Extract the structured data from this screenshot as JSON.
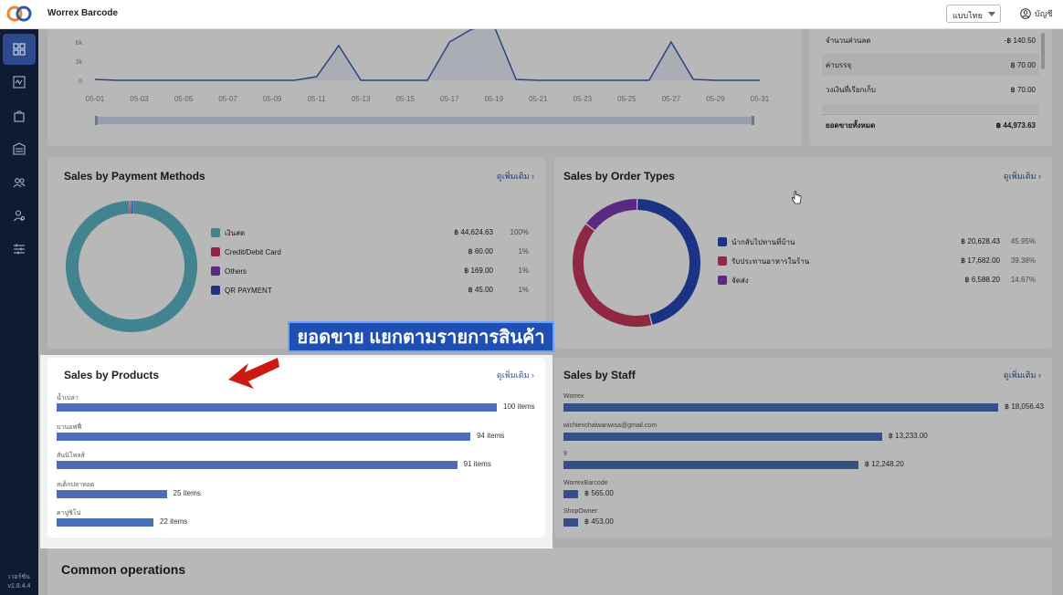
{
  "header": {
    "app_title": "Worrex Barcode",
    "language": "แบบไทย",
    "account_label": "บัญชี"
  },
  "sidebar": {
    "items": [
      "dashboard-icon",
      "activity-icon",
      "bag-icon",
      "inventory-icon",
      "customers-icon",
      "staff-icon",
      "settings-icon"
    ],
    "version_label": "เวอร์ชัน",
    "version": "v1.8.4.4"
  },
  "daily_chart": {
    "y_ticks": [
      "6k",
      "3k",
      "0"
    ],
    "x_ticks": [
      "05-01",
      "05-03",
      "05-05",
      "05-07",
      "05-09",
      "05-11",
      "05-13",
      "05-15",
      "05-17",
      "05-19",
      "05-21",
      "05-23",
      "05-25",
      "05-27",
      "05-29",
      "05-31"
    ]
  },
  "summary": {
    "rows": [
      {
        "label": "จำนวนส่วนลด",
        "value": "-฿ 140.50"
      },
      {
        "label": "ค่าบรรจุ",
        "value": "฿ 70.00"
      },
      {
        "label": "วงเงินที่เรียกเก็บ",
        "value": "฿ 70.00"
      },
      {
        "label": "ยอดขายทั้งหมด",
        "value": "฿ 44,973.63"
      }
    ]
  },
  "payment_methods": {
    "title": "Sales by Payment Methods",
    "see_more": "ดูเพิ่มเติม ›",
    "items": [
      {
        "label": "เงินสด",
        "value": "฿ 44,624.63",
        "pct": "100%",
        "color": "#5bb8c8"
      },
      {
        "label": "Credit/Debit Card",
        "value": "฿ 60.00",
        "pct": "1%",
        "color": "#c8385e"
      },
      {
        "label": "Others",
        "value": "฿ 169.00",
        "pct": "1%",
        "color": "#7c3bb8"
      },
      {
        "label": "QR PAYMENT",
        "value": "฿ 45.00",
        "pct": "1%",
        "color": "#2547b8"
      }
    ]
  },
  "order_types": {
    "title": "Sales by Order Types",
    "see_more": "ดูเพิ่มเติม ›",
    "items": [
      {
        "label": "นำกลับไปทานที่บ้าน",
        "value": "฿ 20,628.43",
        "pct": "45.95%",
        "color": "#2547b8"
      },
      {
        "label": "รับประทานอาหารในร้าน",
        "value": "฿ 17,682.00",
        "pct": "39.38%",
        "color": "#c8385e"
      },
      {
        "label": "จัดส่ง",
        "value": "฿ 6,588.20",
        "pct": "14.67%",
        "color": "#7c3bb8"
      }
    ]
  },
  "products": {
    "title": "Sales by Products",
    "see_more": "ดูเพิ่มเติม ›",
    "items": [
      {
        "name": "น้ำเปล่า",
        "value": "100 items",
        "qty": 100
      },
      {
        "name": "บานอฟฟี่",
        "value": "94 items",
        "qty": 94
      },
      {
        "name": "สันนิโหลส์",
        "value": "91 items",
        "qty": 91
      },
      {
        "name": "สเต็กปลาทอด",
        "value": "25 items",
        "qty": 25
      },
      {
        "name": "คาปูชิโน่",
        "value": "22 items",
        "qty": 22
      }
    ]
  },
  "staff": {
    "title": "Sales by Staff",
    "see_more": "ดูเพิ่มเติม ›",
    "items": [
      {
        "name": "Worrex",
        "value": "฿ 18,056.43",
        "amount": 18056.43
      },
      {
        "name": "wichienchaiwanwisa@gmail.com",
        "value": "฿ 13,233.00",
        "amount": 13233.0
      },
      {
        "name": "9",
        "value": "฿ 12,248.20",
        "amount": 12248.2
      },
      {
        "name": "WorrexBarcode",
        "value": "฿ 565.00",
        "amount": 565.0
      },
      {
        "name": "ShopOwner",
        "value": "฿ 453.00",
        "amount": 453.0
      }
    ]
  },
  "common_operations": {
    "title": "Common operations"
  },
  "annotation": {
    "text": "ยอดขาย แยกตามรายการสินค้า"
  }
}
